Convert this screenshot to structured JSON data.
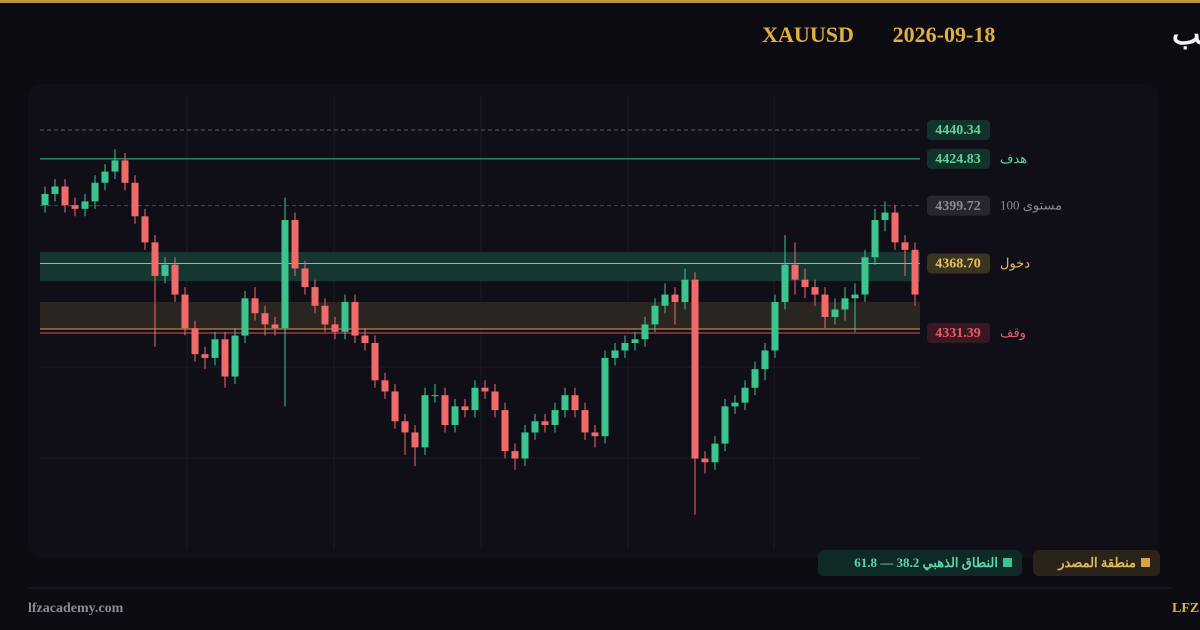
{
  "header": {
    "title": "تحليل الذهب",
    "date": "2026-09-18",
    "symbol": "XAUUSD"
  },
  "chart_data": {
    "type": "candlestick",
    "ylim": [
      4233.7,
      4459.1
    ],
    "up_color": "#3cc48f",
    "down_color": "#f06a6a",
    "open": [
      4400,
      4406,
      4410,
      4400,
      4398,
      4402,
      4412,
      4418,
      4424,
      4412,
      4394,
      4380,
      4362,
      4368,
      4352,
      4334,
      4320,
      4318,
      4328,
      4308,
      4330,
      4350,
      4342,
      4336,
      4334,
      4392,
      4366,
      4356,
      4346,
      4336,
      4332,
      4348,
      4330,
      4326,
      4306,
      4300,
      4284,
      4278,
      4270,
      4298,
      4298,
      4282,
      4292,
      4290,
      4302,
      4300,
      4290,
      4268,
      4264,
      4278,
      4284,
      4282,
      4290,
      4298,
      4290,
      4278,
      4276,
      4318,
      4322,
      4326,
      4328,
      4336,
      4346,
      4352,
      4348,
      4360,
      4264,
      4262,
      4272,
      4292,
      4294,
      4302,
      4312,
      4322,
      4348,
      4368,
      4360,
      4356,
      4352,
      4340,
      4344,
      4350,
      4352,
      4372,
      4392,
      4396,
      4380,
      4376
    ],
    "high": [
      4410,
      4414,
      4414,
      4404,
      4406,
      4416,
      4422,
      4430,
      4428,
      4416,
      4398,
      4384,
      4372,
      4372,
      4356,
      4338,
      4324,
      4332,
      4332,
      4334,
      4354,
      4356,
      4346,
      4340,
      4404,
      4396,
      4370,
      4360,
      4350,
      4340,
      4352,
      4352,
      4334,
      4330,
      4310,
      4304,
      4288,
      4282,
      4302,
      4304,
      4302,
      4296,
      4296,
      4306,
      4306,
      4304,
      4294,
      4272,
      4282,
      4288,
      4288,
      4294,
      4302,
      4302,
      4294,
      4282,
      4322,
      4326,
      4330,
      4332,
      4340,
      4350,
      4358,
      4356,
      4366,
      4364,
      4268,
      4276,
      4296,
      4298,
      4306,
      4316,
      4326,
      4352,
      4384,
      4380,
      4366,
      4360,
      4356,
      4350,
      4356,
      4358,
      4376,
      4398,
      4402,
      4400,
      4384,
      4380
    ],
    "low": [
      4396,
      4402,
      4396,
      4394,
      4394,
      4398,
      4408,
      4414,
      4408,
      4390,
      4376,
      4324,
      4358,
      4348,
      4330,
      4316,
      4312,
      4314,
      4302,
      4304,
      4326,
      4338,
      4330,
      4330,
      4292,
      4362,
      4352,
      4342,
      4332,
      4328,
      4328,
      4326,
      4322,
      4302,
      4296,
      4280,
      4266,
      4260,
      4266,
      4294,
      4278,
      4278,
      4286,
      4286,
      4296,
      4286,
      4264,
      4258,
      4260,
      4274,
      4278,
      4278,
      4286,
      4286,
      4274,
      4270,
      4272,
      4314,
      4318,
      4322,
      4324,
      4332,
      4342,
      4336,
      4344,
      4234,
      4256,
      4258,
      4268,
      4288,
      4290,
      4298,
      4306,
      4318,
      4344,
      4352,
      4350,
      4346,
      4334,
      4336,
      4338,
      4332,
      4348,
      4368,
      4386,
      4376,
      4362,
      4346
    ],
    "close": [
      4406,
      4410,
      4400,
      4398,
      4402,
      4412,
      4418,
      4424,
      4412,
      4394,
      4380,
      4362,
      4368,
      4352,
      4334,
      4320,
      4318,
      4328,
      4308,
      4330,
      4350,
      4342,
      4336,
      4334,
      4392,
      4366,
      4356,
      4346,
      4336,
      4332,
      4348,
      4330,
      4326,
      4306,
      4300,
      4284,
      4278,
      4270,
      4298,
      4298,
      4282,
      4292,
      4290,
      4302,
      4300,
      4290,
      4268,
      4264,
      4278,
      4284,
      4282,
      4290,
      4298,
      4290,
      4278,
      4276,
      4318,
      4322,
      4326,
      4328,
      4336,
      4346,
      4352,
      4348,
      4360,
      4264,
      4262,
      4272,
      4292,
      4294,
      4302,
      4312,
      4322,
      4348,
      4368,
      4360,
      4356,
      4352,
      4340,
      4344,
      4350,
      4352,
      4372,
      4392,
      4396,
      4380,
      4376,
      4352
    ],
    "zones": [
      {
        "name": "النطاق الذهبي 38.2 — 61.8",
        "from": 4359.2,
        "to": 4374.8,
        "color": "#163632",
        "key_color": "#3cc48f",
        "text_color": "#5fd4a8",
        "box_color": "#0f2a26"
      },
      {
        "name": "منطقة المصدر",
        "from": 4333.5,
        "to": 4348.0,
        "color": "#2a2520",
        "border": "#d9a441",
        "key_color": "#d9a441",
        "text_color": "#e0b860",
        "box_color": "#2a2418"
      }
    ],
    "levels": [
      {
        "value": 4440.34,
        "value_label": "4440.34",
        "color": "#5a5a66",
        "dashed": true,
        "text_color": "#5fd49a",
        "box_color": "#12332a"
      },
      {
        "name": "هدف",
        "value": 4424.83,
        "value_label": "4424.83",
        "color": "#3cc48f",
        "dashed": false,
        "text_color": "#5fd49a",
        "box_color": "#12332a"
      },
      {
        "name": "مستوى 100",
        "value": 4399.72,
        "value_label": "4399.72",
        "color": "#4a4a55",
        "dashed": true,
        "text_color": "#8a8a90",
        "box_color": "#26262c"
      },
      {
        "name": "دخول",
        "value": 4368.7,
        "value_label": "4368.70",
        "color": "#5fd4a8",
        "dashed": false,
        "text_color": "#e8c060",
        "box_color": "#3a3320"
      },
      {
        "name": "وقف",
        "value": 4331.39,
        "value_label": "4331.39",
        "color": "#e05060",
        "dashed": false,
        "text_color": "#e85a6c",
        "box_color": "#3a1822"
      }
    ]
  },
  "footer": {
    "site": "lfzacademy.com",
    "brand": "أكاديمية LFZ"
  }
}
